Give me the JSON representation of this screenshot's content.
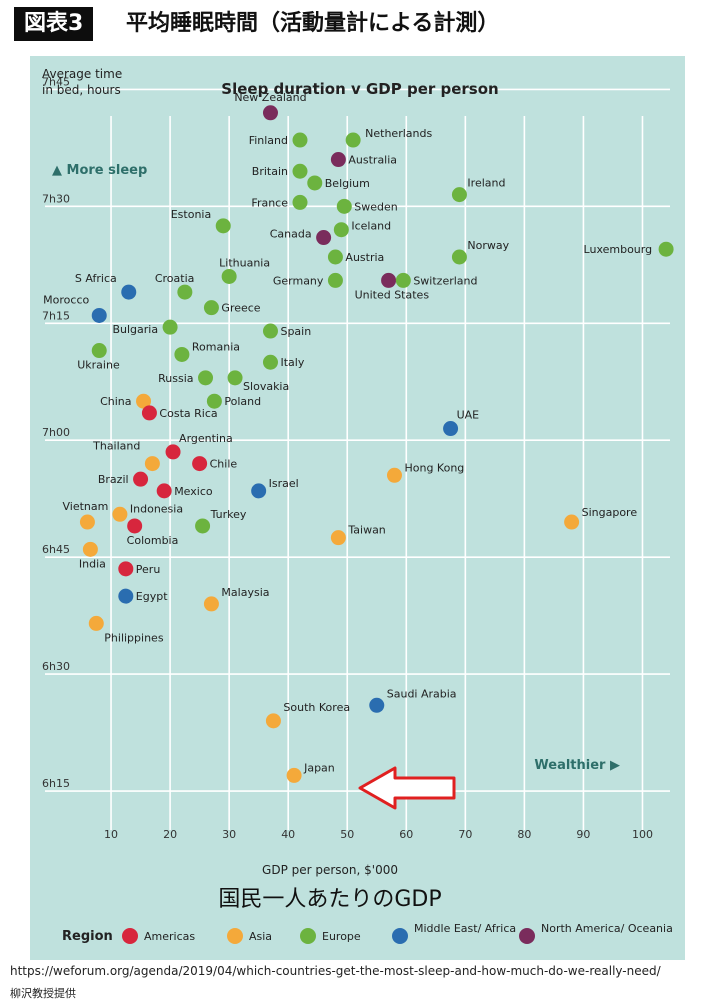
{
  "header": {
    "badge": "図表3",
    "title": "平均睡眠時間（活動量計による計測）"
  },
  "chart_data": {
    "type": "scatter",
    "title": "Sleep duration v GDP per person",
    "xlabel": "GDP per person, $'000",
    "ylabel_line1": "Average time",
    "ylabel_line2": "in bed, hours",
    "x_caption": "国民一人あたりのGDP",
    "xlim": [
      0,
      105
    ],
    "ylim_minutes": [
      371,
      411
    ],
    "x_ticks": [
      10,
      20,
      30,
      40,
      50,
      60,
      70,
      80,
      90,
      100
    ],
    "y_ticks": [
      {
        "value": 375,
        "label": "6h15"
      },
      {
        "value": 390,
        "label": "6h30"
      },
      {
        "value": 405,
        "label": "6h45"
      },
      {
        "value": 420,
        "label": "7h00"
      },
      {
        "value": 435,
        "label": "7h15"
      },
      {
        "value": 450,
        "label": "7h30"
      },
      {
        "value": 465,
        "label": "7h45"
      }
    ],
    "y_range": [
      370,
      468
    ],
    "grid": true,
    "annotations": {
      "more_sleep": "▲ More sleep",
      "wealthier": "Wealthier ▶"
    },
    "legend": {
      "title": "Region",
      "placement": "bottom",
      "entries": [
        {
          "name": "Americas",
          "color": "#d7263d"
        },
        {
          "name": "Asia",
          "color": "#f4a93a"
        },
        {
          "name": "Europe",
          "color": "#6cb33f"
        },
        {
          "name": "Middle East/ Africa",
          "color": "#2a6db0"
        },
        {
          "name": "North America/ Oceania",
          "color": "#7a2c5c"
        }
      ]
    },
    "points": [
      {
        "label": "New Zealand",
        "x": 37,
        "y": 462,
        "region": "North America/ Oceania"
      },
      {
        "label": "Finland",
        "x": 42,
        "y": 458.5,
        "region": "Europe"
      },
      {
        "label": "Netherlands",
        "x": 51,
        "y": 458.5,
        "region": "Europe"
      },
      {
        "label": "Britain",
        "x": 42,
        "y": 454.5,
        "region": "Europe"
      },
      {
        "label": "Australia",
        "x": 48.5,
        "y": 456,
        "region": "North America/ Oceania"
      },
      {
        "label": "Belgium",
        "x": 44.5,
        "y": 453,
        "region": "Europe"
      },
      {
        "label": "Ireland",
        "x": 69,
        "y": 451.5,
        "region": "Europe"
      },
      {
        "label": "France",
        "x": 42,
        "y": 450.5,
        "region": "Europe"
      },
      {
        "label": "Sweden",
        "x": 49.5,
        "y": 450,
        "region": "Europe"
      },
      {
        "label": "Estonia",
        "x": 29,
        "y": 447.5,
        "region": "Europe"
      },
      {
        "label": "Iceland",
        "x": 49,
        "y": 447,
        "region": "Europe"
      },
      {
        "label": "Canada",
        "x": 46,
        "y": 446,
        "region": "North America/ Oceania"
      },
      {
        "label": "Norway",
        "x": 69,
        "y": 443.5,
        "region": "Europe"
      },
      {
        "label": "Luxembourg",
        "x": 104,
        "y": 444.5,
        "region": "Europe"
      },
      {
        "label": "Austria",
        "x": 48,
        "y": 443.5,
        "region": "Europe"
      },
      {
        "label": "Lithuania",
        "x": 30,
        "y": 441,
        "region": "Europe"
      },
      {
        "label": "Germany",
        "x": 48,
        "y": 440.5,
        "region": "Europe"
      },
      {
        "label": "United States",
        "x": 57,
        "y": 440.5,
        "region": "North America/ Oceania"
      },
      {
        "label": "Switzerland",
        "x": 59.5,
        "y": 440.5,
        "region": "Europe"
      },
      {
        "label": "S Africa",
        "x": 13,
        "y": 439,
        "region": "Middle East/ Africa"
      },
      {
        "label": "Croatia",
        "x": 22.5,
        "y": 439,
        "region": "Europe"
      },
      {
        "label": "Greece",
        "x": 27,
        "y": 437,
        "region": "Europe"
      },
      {
        "label": "Morocco",
        "x": 8,
        "y": 436,
        "region": "Middle East/ Africa"
      },
      {
        "label": "Bulgaria",
        "x": 20,
        "y": 434.5,
        "region": "Europe"
      },
      {
        "label": "Spain",
        "x": 37,
        "y": 434,
        "region": "Europe"
      },
      {
        "label": "Ukraine",
        "x": 8,
        "y": 431.5,
        "region": "Europe"
      },
      {
        "label": "Romania",
        "x": 22,
        "y": 431,
        "region": "Europe"
      },
      {
        "label": "Italy",
        "x": 37,
        "y": 430,
        "region": "Europe"
      },
      {
        "label": "Russia",
        "x": 26,
        "y": 428,
        "region": "Europe"
      },
      {
        "label": "Slovakia",
        "x": 31,
        "y": 428,
        "region": "Europe"
      },
      {
        "label": "China",
        "x": 15.5,
        "y": 425,
        "region": "Asia"
      },
      {
        "label": "Costa Rica",
        "x": 16.5,
        "y": 423.5,
        "region": "Americas"
      },
      {
        "label": "Poland",
        "x": 27.5,
        "y": 425,
        "region": "Europe"
      },
      {
        "label": "UAE",
        "x": 67.5,
        "y": 421.5,
        "region": "Middle East/ Africa"
      },
      {
        "label": "Thailand",
        "x": 17,
        "y": 417,
        "region": "Asia"
      },
      {
        "label": "Argentina",
        "x": 20.5,
        "y": 418.5,
        "region": "Americas"
      },
      {
        "label": "Chile",
        "x": 25,
        "y": 417,
        "region": "Americas"
      },
      {
        "label": "Hong Kong",
        "x": 58,
        "y": 415.5,
        "region": "Asia"
      },
      {
        "label": "Brazil",
        "x": 15,
        "y": 415,
        "region": "Americas"
      },
      {
        "label": "Mexico",
        "x": 19,
        "y": 413.5,
        "region": "Americas"
      },
      {
        "label": "Israel",
        "x": 35,
        "y": 413.5,
        "region": "Middle East/ Africa"
      },
      {
        "label": "Vietnam",
        "x": 6,
        "y": 409.5,
        "region": "Asia"
      },
      {
        "label": "Indonesia",
        "x": 11.5,
        "y": 410.5,
        "region": "Asia"
      },
      {
        "label": "Turkey",
        "x": 25.5,
        "y": 409,
        "region": "Europe"
      },
      {
        "label": "Singapore",
        "x": 88,
        "y": 409.5,
        "region": "Asia"
      },
      {
        "label": "Colombia",
        "x": 14,
        "y": 409,
        "region": "Americas"
      },
      {
        "label": "Taiwan",
        "x": 48.5,
        "y": 407.5,
        "region": "Asia"
      },
      {
        "label": "India",
        "x": 6.5,
        "y": 406,
        "region": "Asia"
      },
      {
        "label": "Peru",
        "x": 12.5,
        "y": 403.5,
        "region": "Americas"
      },
      {
        "label": "Egypt",
        "x": 12.5,
        "y": 400,
        "region": "Middle East/ Africa"
      },
      {
        "label": "Malaysia",
        "x": 27,
        "y": 399,
        "region": "Asia"
      },
      {
        "label": "Philippines",
        "x": 7.5,
        "y": 396.5,
        "region": "Asia"
      },
      {
        "label": "Saudi Arabia",
        "x": 55,
        "y": 386,
        "region": "Middle East/ Africa"
      },
      {
        "label": "South Korea",
        "x": 37.5,
        "y": 384,
        "region": "Asia"
      },
      {
        "label": "Japan",
        "x": 41,
        "y": 377,
        "region": "Asia"
      }
    ]
  },
  "source": {
    "url": "https://weforum.org/agenda/2019/04/which-countries-get-the-most-sleep-and-how-much-do-we-really-need/",
    "credit": "柳沢教授提供"
  }
}
